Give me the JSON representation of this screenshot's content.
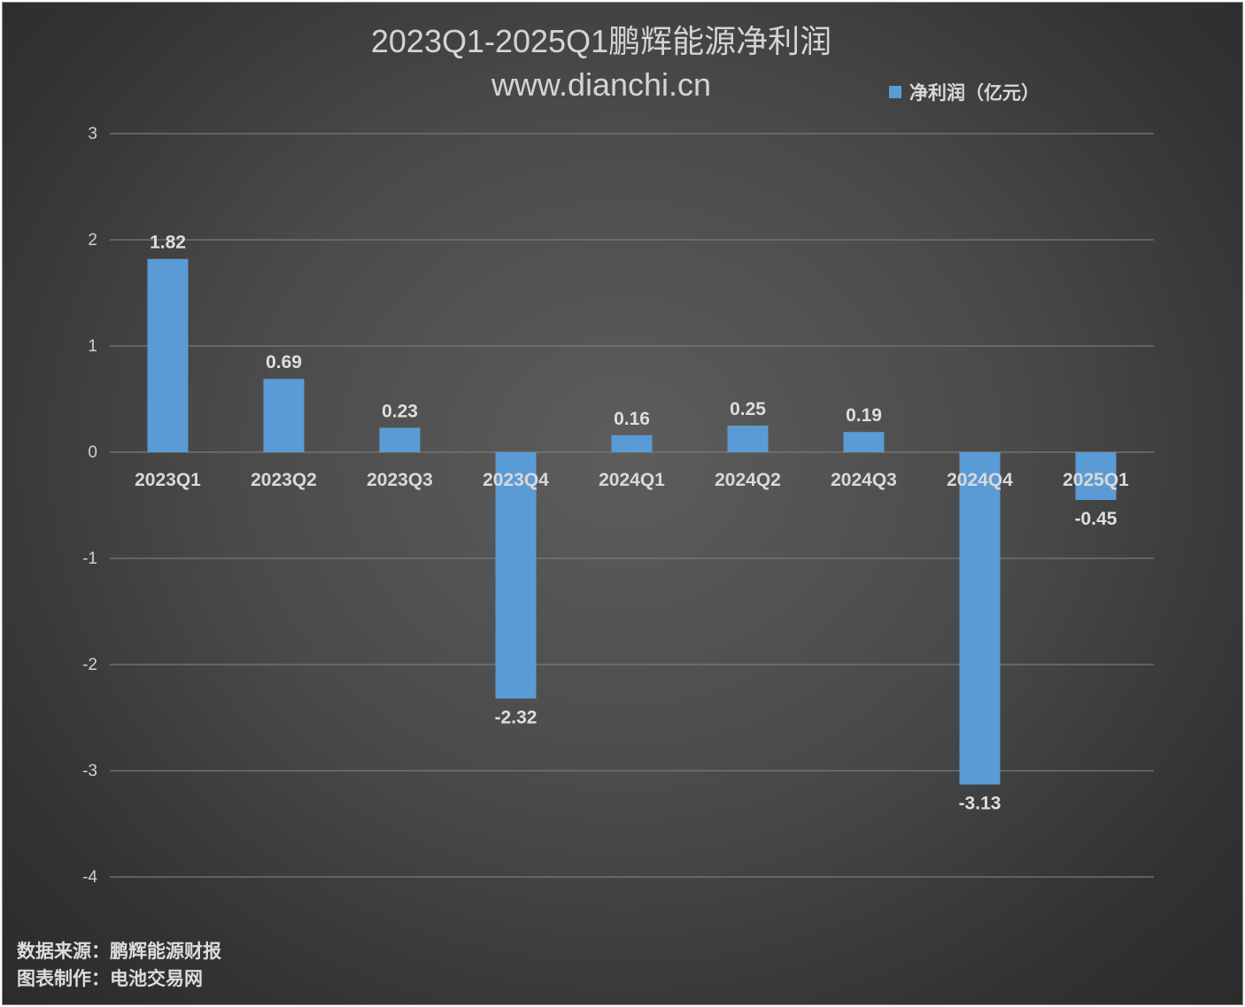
{
  "chart_data": {
    "type": "bar",
    "title": "2023Q1-2025Q1鹏辉能源净利润",
    "subtitle": "www.dianchi.cn",
    "categories": [
      "2023Q1",
      "2023Q2",
      "2023Q3",
      "2023Q4",
      "2024Q1",
      "2024Q2",
      "2024Q3",
      "2024Q4",
      "2025Q1"
    ],
    "series": [
      {
        "name": "净利润（亿元）",
        "values": [
          1.82,
          0.69,
          0.23,
          -2.32,
          0.16,
          0.25,
          0.19,
          -3.13,
          -0.45
        ],
        "labels": [
          "1.82",
          "0.69",
          "0.23",
          "-2.32",
          "0.16",
          "0.25",
          "0.19",
          "-3.13",
          "-0.45"
        ],
        "color": "#5b9bd5"
      }
    ],
    "xlabel": "",
    "ylabel": "",
    "ylim": [
      -4,
      3
    ],
    "yticks": [
      "3",
      "2",
      "1",
      "0",
      "-1",
      "-2",
      "-3",
      "-4"
    ],
    "grid": true,
    "legend_position": "top-right"
  },
  "footer": {
    "source": "数据来源：鹏辉能源财报",
    "maker": "图表制作：电池交易网"
  },
  "colors": {
    "bar": "#5b9bd5",
    "grid": "#7a7a7a",
    "axis_text": "#d0d0d0",
    "category_text": "#d9d9d9",
    "label_text": "#dedede"
  }
}
